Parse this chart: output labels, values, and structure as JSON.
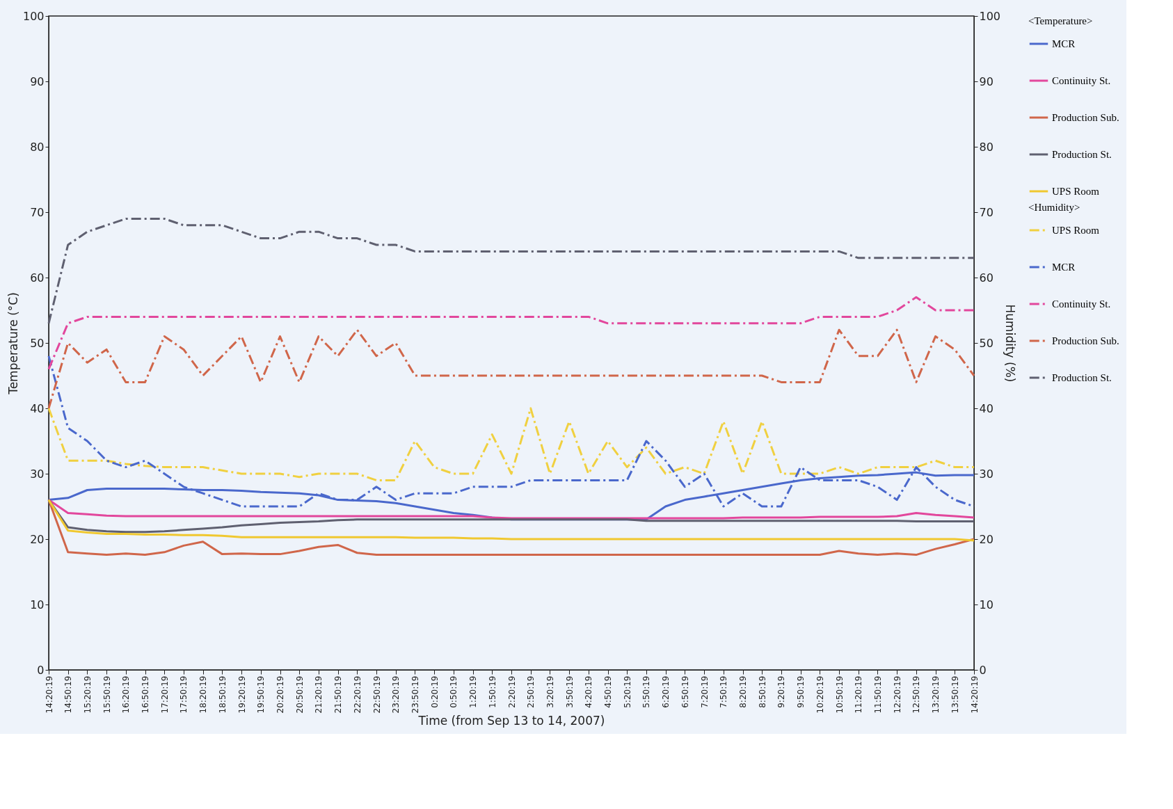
{
  "chart_data": {
    "type": "line",
    "xlabel": "Time (from Sep 13 to 14, 2007)",
    "ylabel": "Temperature (°C)",
    "y2label": "Humidity (%)",
    "legend_title": "<Temperature>",
    "annotations": [
      "<Humidity>"
    ],
    "categories": [
      "14:20:19",
      "14:50:19",
      "15:20:19",
      "15:50:19",
      "16:20:19",
      "16:50:19",
      "17:20:19",
      "17:50:19",
      "18:20:19",
      "18:50:19",
      "19:20:19",
      "19:50:19",
      "20:20:19",
      "20:50:19",
      "21:20:19",
      "21:50:19",
      "22:20:19",
      "22:50:19",
      "23:20:19",
      "23:50:19",
      "0:20:19",
      "0:50:19",
      "1:20:19",
      "1:50:19",
      "2:20:19",
      "2:50:19",
      "3:20:19",
      "3:50:19",
      "4:20:19",
      "4:50:19",
      "5:20:19",
      "5:50:19",
      "6:20:19",
      "6:50:19",
      "7:20:19",
      "7:50:19",
      "8:20:19",
      "8:50:19",
      "9:20:19",
      "9:50:19",
      "10:20:19",
      "10:50:19",
      "11:20:19",
      "11:50:19",
      "12:20:19",
      "12:50:19",
      "13:20:19",
      "13:50:19",
      "14:20:19"
    ],
    "ylim": [
      0,
      100
    ],
    "yticks": [
      0,
      10,
      20,
      30,
      40,
      50,
      60,
      70,
      80,
      90,
      100
    ],
    "y2lim": [
      0,
      100
    ],
    "y2ticks": [
      0,
      10,
      20,
      30,
      40,
      50,
      60,
      70,
      80,
      90,
      100
    ],
    "grid": false,
    "legend": "right",
    "marker": "none",
    "series": [
      {
        "name": "MCR",
        "color": "#4a68cc",
        "line_style": "solid",
        "values": [
          26,
          26.3,
          27.5,
          27.7,
          27.7,
          27.7,
          27.7,
          27.6,
          27.5,
          27.5,
          27.4,
          27.2,
          27.1,
          27,
          26.7,
          26,
          25.9,
          25.8,
          25.5,
          25,
          24.5,
          24,
          23.7,
          23.3,
          23,
          23,
          23,
          23,
          23,
          23,
          23,
          23,
          25,
          26,
          26.5,
          27,
          27.5,
          28,
          28.5,
          29,
          29.3,
          29.5,
          29.7,
          29.8,
          30,
          30.2,
          29.7,
          29.8,
          29.8
        ]
      },
      {
        "name": "Continuity St.",
        "color": "#e2479c",
        "line_style": "solid",
        "values": [
          26,
          24,
          23.8,
          23.6,
          23.5,
          23.5,
          23.5,
          23.5,
          23.5,
          23.5,
          23.5,
          23.5,
          23.5,
          23.5,
          23.5,
          23.5,
          23.5,
          23.5,
          23.5,
          23.5,
          23.5,
          23.5,
          23.5,
          23.3,
          23.2,
          23.2,
          23.2,
          23.2,
          23.2,
          23.2,
          23.2,
          23.2,
          23.2,
          23.2,
          23.2,
          23.2,
          23.3,
          23.3,
          23.3,
          23.3,
          23.4,
          23.4,
          23.4,
          23.4,
          23.5,
          24,
          23.7,
          23.5,
          23.3
        ]
      },
      {
        "name": "Production Sub.",
        "color": "#d0664a",
        "line_style": "solid",
        "values": [
          26,
          18,
          17.8,
          17.6,
          17.8,
          17.6,
          18,
          19,
          19.6,
          17.7,
          17.8,
          17.7,
          17.7,
          18.2,
          18.8,
          19.1,
          17.9,
          17.6,
          17.6,
          17.6,
          17.6,
          17.6,
          17.6,
          17.6,
          17.6,
          17.6,
          17.6,
          17.6,
          17.6,
          17.6,
          17.6,
          17.6,
          17.6,
          17.6,
          17.6,
          17.6,
          17.6,
          17.6,
          17.6,
          17.6,
          17.6,
          18.2,
          17.8,
          17.6,
          17.8,
          17.6,
          18.5,
          19.2,
          20
        ]
      },
      {
        "name": "Production St.",
        "color": "#5f6070",
        "line_style": "solid",
        "values": [
          26,
          21.8,
          21.4,
          21.2,
          21.1,
          21.1,
          21.2,
          21.4,
          21.6,
          21.8,
          22.1,
          22.3,
          22.5,
          22.6,
          22.7,
          22.9,
          23,
          23,
          23,
          23,
          23,
          23,
          23,
          23,
          23,
          23,
          23,
          23,
          23,
          23,
          23,
          22.8,
          22.8,
          22.8,
          22.8,
          22.8,
          22.8,
          22.8,
          22.8,
          22.8,
          22.8,
          22.8,
          22.8,
          22.8,
          22.8,
          22.7,
          22.7,
          22.7,
          22.7
        ]
      },
      {
        "name": "UPS Room",
        "color": "#f0c830",
        "line_style": "solid",
        "values": [
          26,
          21.3,
          21,
          20.8,
          20.8,
          20.7,
          20.7,
          20.6,
          20.6,
          20.5,
          20.3,
          20.3,
          20.3,
          20.3,
          20.3,
          20.3,
          20.3,
          20.3,
          20.3,
          20.2,
          20.2,
          20.2,
          20.1,
          20.1,
          20,
          20,
          20,
          20,
          20,
          20,
          20,
          20,
          20,
          20,
          20,
          20,
          20,
          20,
          20,
          20,
          20,
          20,
          20,
          20,
          20,
          20,
          20,
          20,
          19.8
        ]
      },
      {
        "name": "UPS Room",
        "axis": "y2",
        "color": "#f0d040",
        "line_style": "dashed",
        "values": [
          40,
          32,
          32,
          32,
          31.5,
          31.2,
          31,
          31,
          31,
          30.5,
          30,
          30,
          30,
          29.5,
          30,
          30,
          30,
          29,
          29,
          35,
          31,
          30,
          30,
          36,
          30,
          40,
          30,
          38,
          30,
          35,
          31,
          34,
          30,
          31,
          30,
          38,
          30,
          38,
          30,
          30,
          30,
          31,
          30,
          31,
          31,
          31,
          32,
          31,
          31
        ]
      },
      {
        "name": "MCR",
        "axis": "y2",
        "color": "#4a68cc",
        "line_style": "dashed",
        "values": [
          48,
          37,
          35,
          32,
          31,
          32,
          30,
          28,
          27,
          26,
          25,
          25,
          25,
          25,
          27,
          26,
          26,
          28,
          26,
          27,
          27,
          27,
          28,
          28,
          28,
          29,
          29,
          29,
          29,
          29,
          29,
          35,
          32,
          28,
          30,
          25,
          27,
          25,
          25,
          31,
          29,
          29,
          29,
          28,
          26,
          31,
          28,
          26,
          25
        ]
      },
      {
        "name": "Continuity St.",
        "axis": "y2",
        "color": "#e2479c",
        "line_style": "dashed",
        "values": [
          46,
          53,
          54,
          54,
          54,
          54,
          54,
          54,
          54,
          54,
          54,
          54,
          54,
          54,
          54,
          54,
          54,
          54,
          54,
          54,
          54,
          54,
          54,
          54,
          54,
          54,
          54,
          54,
          54,
          53,
          53,
          53,
          53,
          53,
          53,
          53,
          53,
          53,
          53,
          53,
          54,
          54,
          54,
          54,
          55,
          57,
          55,
          55,
          55
        ]
      },
      {
        "name": "Production Sub.",
        "axis": "y2",
        "color": "#d0664a",
        "line_style": "dashed",
        "values": [
          40,
          50,
          47,
          49,
          44,
          44,
          51,
          49,
          45,
          48,
          51,
          44,
          51,
          44,
          51,
          48,
          52,
          48,
          50,
          45,
          45,
          45,
          45,
          45,
          45,
          45,
          45,
          45,
          45,
          45,
          45,
          45,
          45,
          45,
          45,
          45,
          45,
          45,
          44,
          44,
          44,
          52,
          48,
          48,
          52,
          44,
          51,
          49,
          45
        ]
      },
      {
        "name": "Production St.",
        "axis": "y2",
        "color": "#5f6070",
        "line_style": "dashed",
        "values": [
          53,
          65,
          67,
          68,
          69,
          69,
          69,
          68,
          68,
          68,
          67,
          66,
          66,
          67,
          67,
          66,
          66,
          65,
          65,
          64,
          64,
          64,
          64,
          64,
          64,
          64,
          64,
          64,
          64,
          64,
          64,
          64,
          64,
          64,
          64,
          64,
          64,
          64,
          64,
          64,
          64,
          64,
          63,
          63,
          63,
          63,
          63,
          63,
          63
        ]
      }
    ]
  }
}
